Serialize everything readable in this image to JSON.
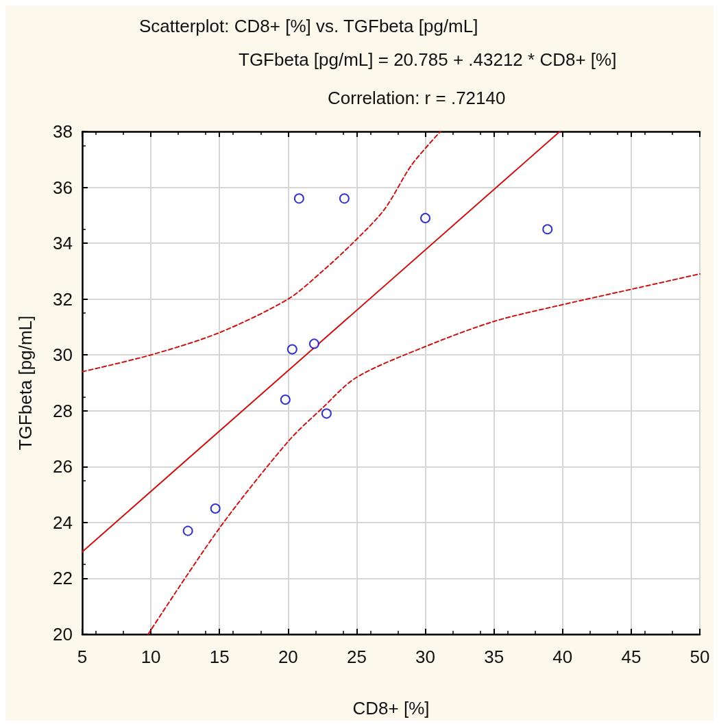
{
  "chart_data": {
    "type": "scatter",
    "title": "Scatterplot: CD8+ [%] vs. TGFbeta [pg/mL]",
    "annotations": [
      "TGFbeta [pg/mL] = 20.785 + .43212 * CD8+ [%]",
      "Correlation: r = .72140"
    ],
    "xlabel": "CD8+ [%]",
    "ylabel": "TGFbeta [pg/mL]",
    "xlim": [
      5,
      50
    ],
    "xticks": [
      5,
      10,
      15,
      20,
      25,
      30,
      35,
      40,
      45,
      50
    ],
    "ylim": [
      20,
      38
    ],
    "yticks": [
      20,
      22,
      24,
      26,
      28,
      30,
      32,
      34,
      36,
      38
    ],
    "grid": true,
    "marker": "circle",
    "series": [
      {
        "color": "#0000c0",
        "x": [
          12.7,
          14.7,
          19.8,
          20.3,
          20.8,
          21.9,
          22.8,
          24.1,
          30.0,
          38.9
        ],
        "values": [
          23.7,
          24.5,
          28.4,
          30.2,
          35.6,
          30.4,
          27.9,
          35.6,
          34.9,
          34.5
        ]
      },
      {
        "type": "line",
        "color": "#cc1111",
        "line_style": "solid",
        "marker": "none",
        "x": [
          5,
          39.8
        ],
        "values": [
          22.95,
          38.0
        ]
      },
      {
        "type": "line",
        "color": "#cc1111",
        "line_style": "dashed",
        "marker": "none",
        "x": [
          5,
          10,
          15,
          20,
          22.5,
          24.7,
          27,
          29,
          31.1
        ],
        "values": [
          29.4,
          30.0,
          30.8,
          32.0,
          33.0,
          34.0,
          35.2,
          36.8,
          38.0
        ]
      },
      {
        "type": "line",
        "color": "#cc1111",
        "line_style": "dashed",
        "marker": "none",
        "x": [
          9.8,
          15,
          20,
          22.5,
          25,
          30,
          35,
          40,
          45,
          50
        ],
        "values": [
          20.0,
          23.8,
          26.9,
          28.1,
          29.2,
          30.3,
          31.2,
          31.8,
          32.35,
          32.9
        ]
      }
    ]
  }
}
